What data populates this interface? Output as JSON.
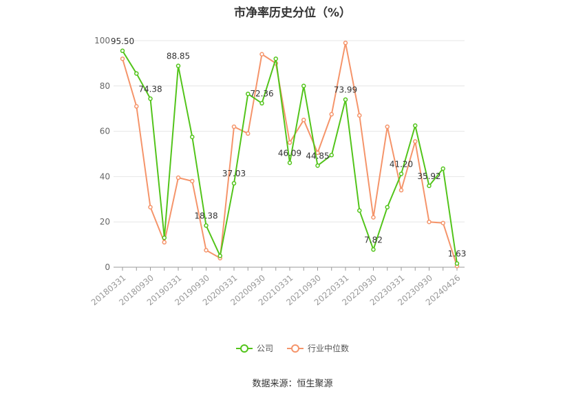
{
  "chart_data": {
    "type": "line",
    "title": "市净率历史分位（%）",
    "x": [
      "20180331",
      "20180630",
      "20180930",
      "20181231",
      "20190331",
      "20190630",
      "20190930",
      "20191231",
      "20200331",
      "20200630",
      "20200930",
      "20201231",
      "20210331",
      "20210630",
      "20210930",
      "20211231",
      "20220331",
      "20220630",
      "20220930",
      "20221231",
      "20230331",
      "20230630",
      "20230930",
      "20231231",
      "20240426"
    ],
    "x_tick_labels": [
      "20180331",
      "20180930",
      "20190331",
      "20190930",
      "20200331",
      "20200930",
      "20210331",
      "20210930",
      "20220331",
      "20220930",
      "20230331",
      "20230930",
      "20240426"
    ],
    "ylim": [
      0,
      100
    ],
    "y_ticks": [
      0,
      20,
      40,
      60,
      80,
      100
    ],
    "grid": true,
    "legend_position": "bottom",
    "series": [
      {
        "name": "公司",
        "color": "#52c41a",
        "values": [
          95.5,
          85.5,
          74.38,
          13.0,
          88.85,
          57.5,
          18.38,
          5.0,
          37.03,
          76.5,
          72.36,
          92.0,
          46.09,
          80.0,
          44.85,
          49.5,
          73.99,
          25.0,
          7.82,
          26.5,
          41.2,
          62.5,
          35.92,
          43.5,
          1.63
        ],
        "labels": [
          "95.50",
          "",
          "74.38",
          "",
          "88.85",
          "",
          "18.38",
          "",
          "37.03",
          "",
          "72.36",
          "",
          "46.09",
          "",
          "44.85",
          "",
          "73.99",
          "",
          "7.82",
          "",
          "41.20",
          "",
          "35.92",
          "",
          "1.63"
        ]
      },
      {
        "name": "行业中位数",
        "color": "#f5946a",
        "values": [
          92.0,
          71.0,
          26.5,
          11.0,
          39.5,
          38.0,
          7.5,
          4.0,
          62.0,
          59.0,
          94.0,
          90.0,
          55.0,
          65.0,
          50.5,
          67.5,
          99.0,
          67.0,
          22.0,
          62.0,
          34.0,
          55.5,
          20.0,
          19.5,
          0.5
        ]
      }
    ]
  },
  "source_text": "数据来源：恒生聚源"
}
